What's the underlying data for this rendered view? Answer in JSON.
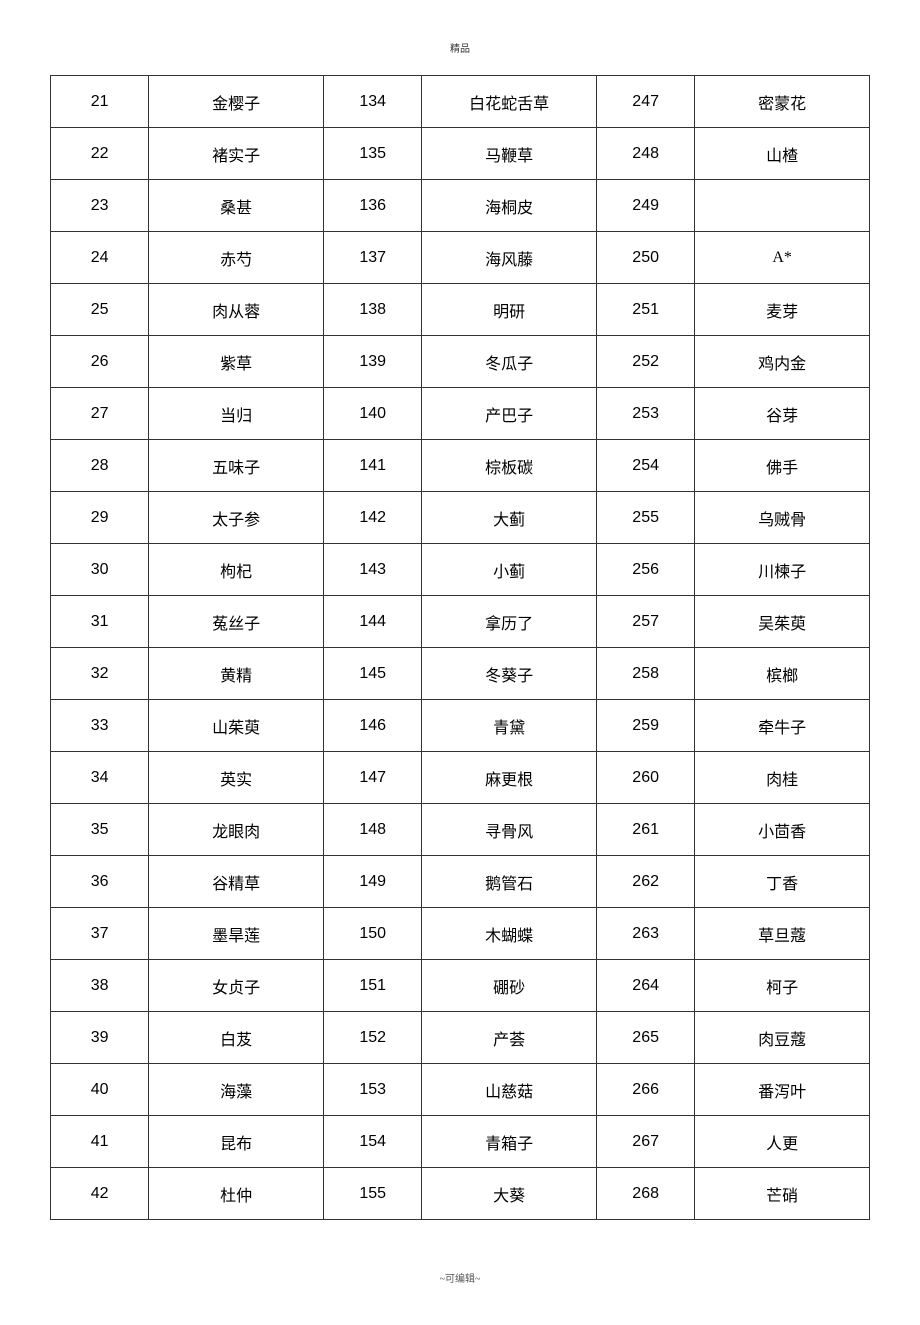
{
  "header": "精品",
  "footer": "~可编辑~",
  "table": {
    "columns": [
      "num1",
      "name1",
      "num2",
      "name2",
      "num3",
      "name3"
    ],
    "rows": [
      [
        "21",
        "金樱子",
        "134",
        "白花蛇舌草",
        "247",
        "密蒙花"
      ],
      [
        "22",
        "褚实子",
        "135",
        "马鞭草",
        "248",
        "山楂"
      ],
      [
        "23",
        "桑甚",
        "136",
        "海桐皮",
        "249",
        ""
      ],
      [
        "24",
        "赤芍",
        "137",
        "海风藤",
        "250",
        "A*"
      ],
      [
        "25",
        "肉从蓉",
        "138",
        "明研",
        "251",
        "麦芽"
      ],
      [
        "26",
        "紫草",
        "139",
        "冬瓜子",
        "252",
        "鸡内金"
      ],
      [
        "27",
        "当归",
        "140",
        "产巴子",
        "253",
        "谷芽"
      ],
      [
        "28",
        "五味子",
        "141",
        "棕板碳",
        "254",
        "佛手"
      ],
      [
        "29",
        "太子参",
        "142",
        "大蓟",
        "255",
        "乌贼骨"
      ],
      [
        "30",
        "枸杞",
        "143",
        "小蓟",
        "256",
        "川楝子"
      ],
      [
        "31",
        "菟丝子",
        "144",
        "拿历了",
        "257",
        "吴茱萸"
      ],
      [
        "32",
        "黄精",
        "145",
        "冬葵子",
        "258",
        "槟榔"
      ],
      [
        "33",
        "山茱萸",
        "146",
        "青黛",
        "259",
        "牵牛子"
      ],
      [
        "34",
        "英实",
        "147",
        "麻更根",
        "260",
        "肉桂"
      ],
      [
        "35",
        "龙眼肉",
        "148",
        "寻骨风",
        "261",
        "小茴香"
      ],
      [
        "36",
        "谷精草",
        "149",
        "鹅管石",
        "262",
        "丁香"
      ],
      [
        "37",
        "墨旱莲",
        "150",
        "木蝴蝶",
        "263",
        "草旦蔻"
      ],
      [
        "38",
        "女贞子",
        "151",
        "硼砂",
        "264",
        "柯子"
      ],
      [
        "39",
        "白芨",
        "152",
        "产荟",
        "265",
        "肉豆蔻"
      ],
      [
        "40",
        "海藻",
        "153",
        "山慈菇",
        "266",
        "番泻叶"
      ],
      [
        "41",
        "昆布",
        "154",
        "青箱子",
        "267",
        "人更"
      ],
      [
        "42",
        "杜仲",
        "155",
        "大葵",
        "268",
        "芒硝"
      ]
    ]
  }
}
